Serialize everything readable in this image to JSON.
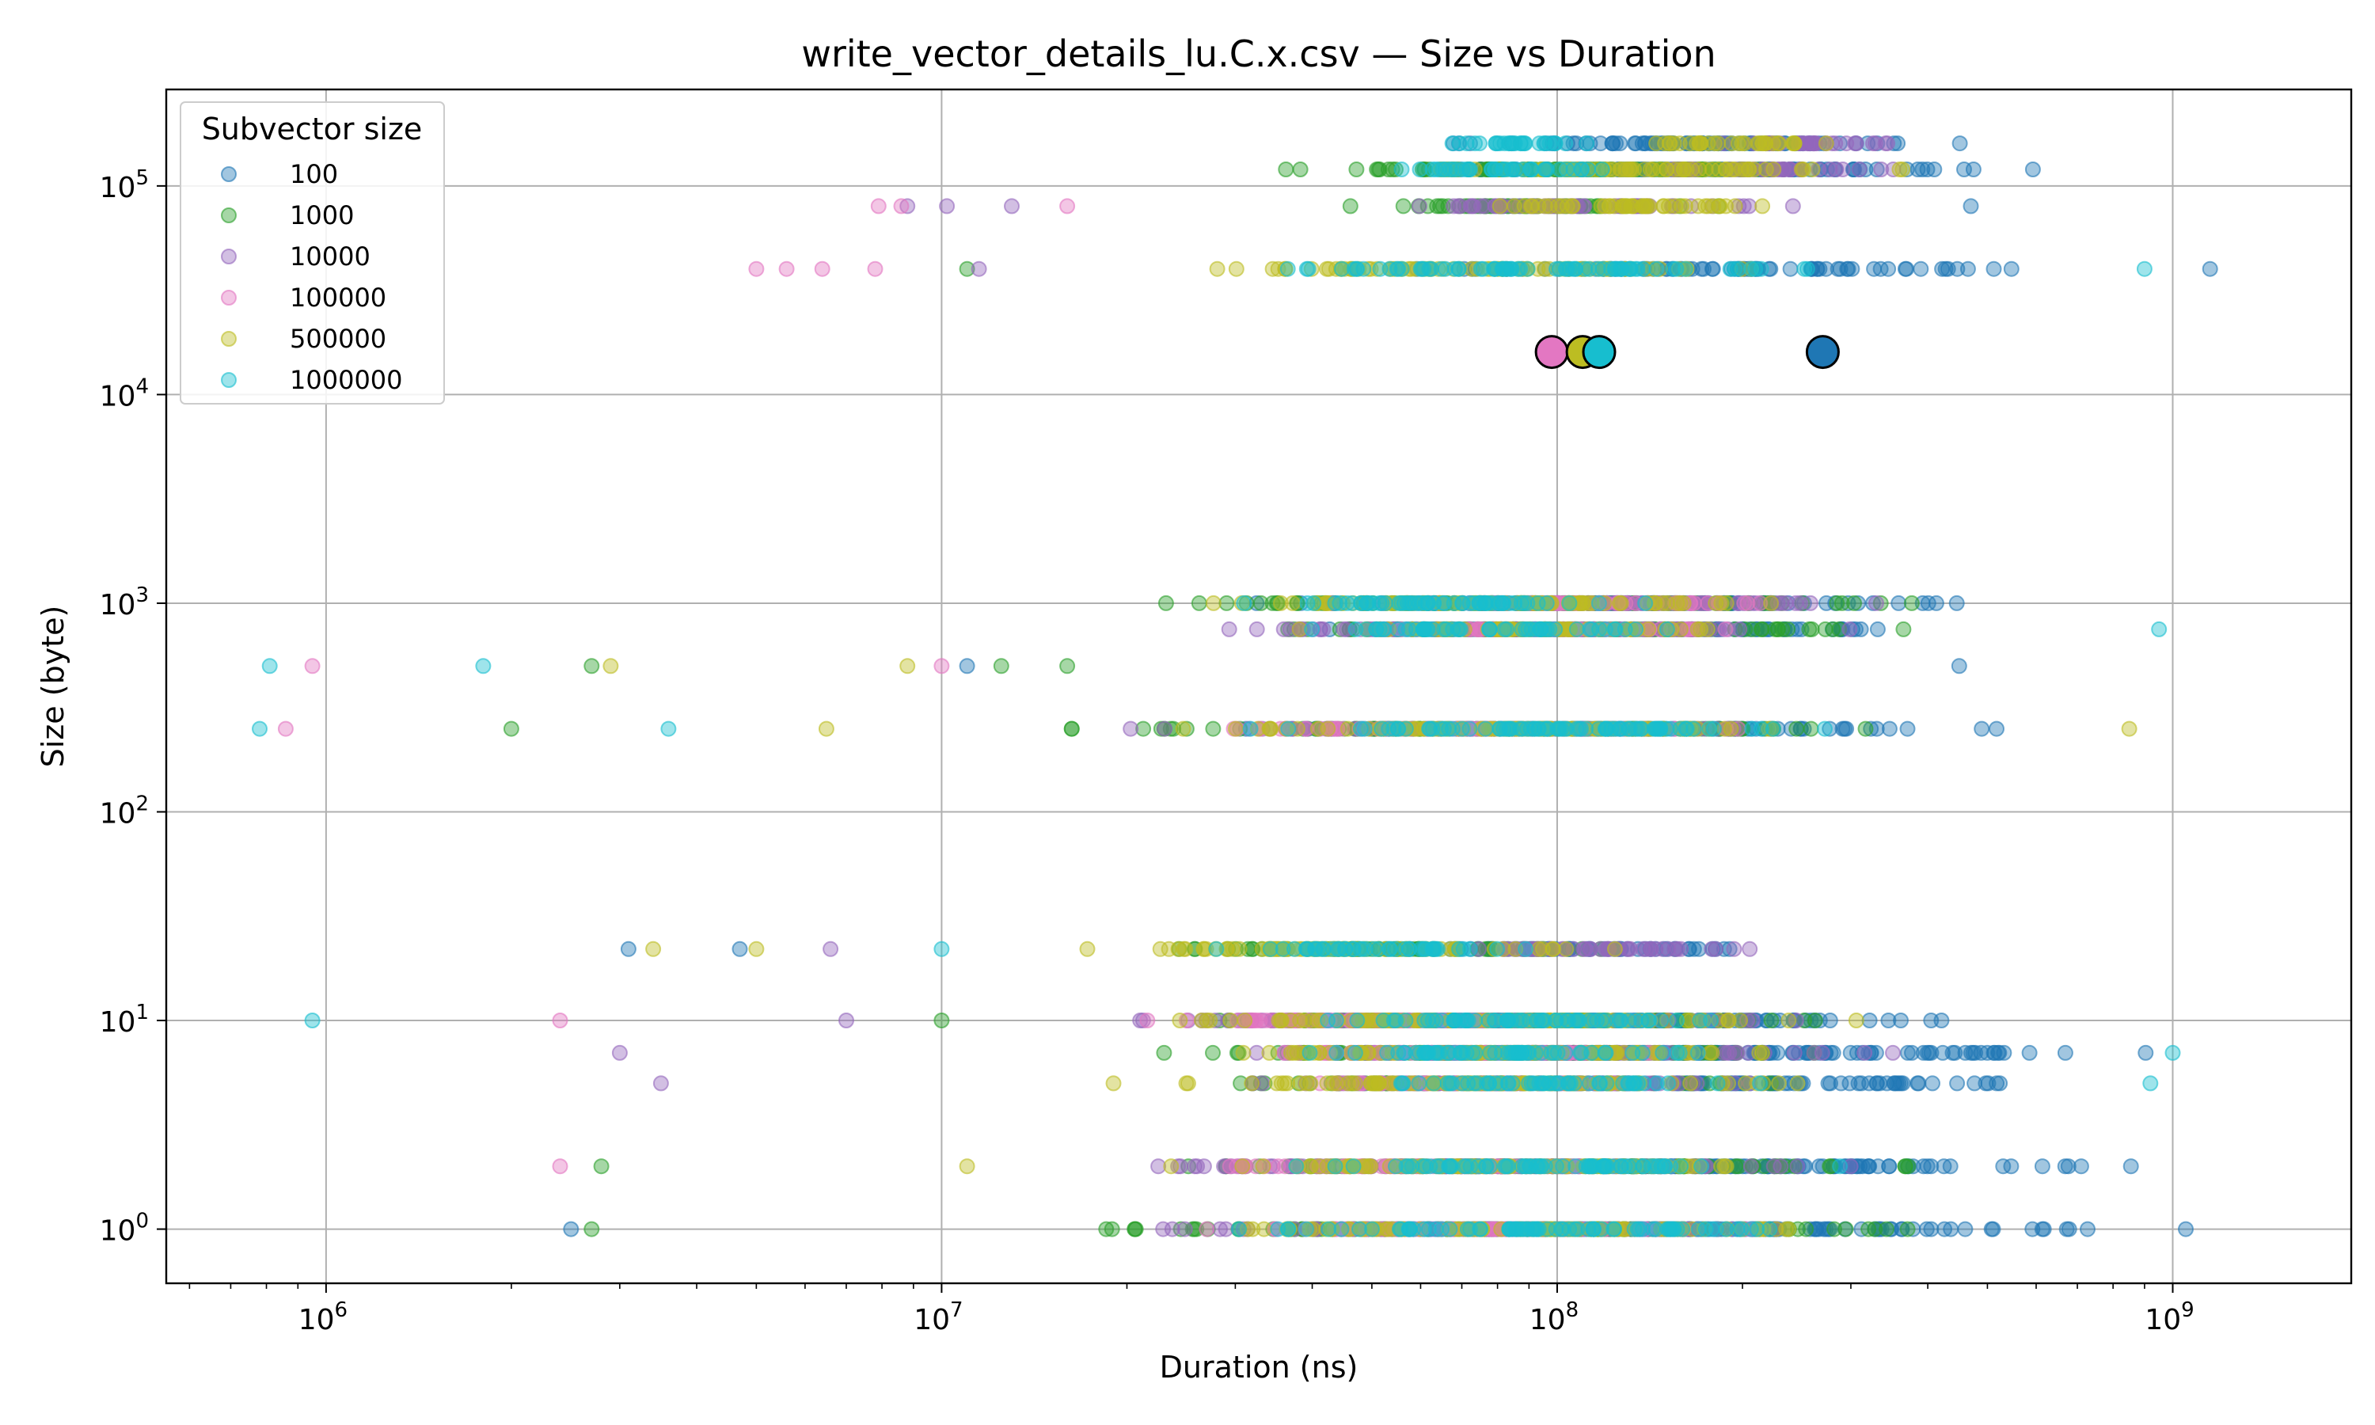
{
  "chart_data": {
    "type": "scatter",
    "title": "write_vector_details_lu.C.x.csv — Size vs Duration",
    "xlabel": "Duration (ns)",
    "ylabel": "Size (byte)",
    "xscale": "log",
    "yscale": "log",
    "xlim": [
      550000,
      1950000000
    ],
    "ylim": [
      0.55,
      290000
    ],
    "grid": true,
    "x_ticks": [
      {
        "base": "10",
        "exp": "6",
        "value": 1000000
      },
      {
        "base": "10",
        "exp": "7",
        "value": 10000000
      },
      {
        "base": "10",
        "exp": "8",
        "value": 100000000
      },
      {
        "base": "10",
        "exp": "9",
        "value": 1000000000
      }
    ],
    "y_ticks": [
      {
        "base": "10",
        "exp": "0",
        "value": 1
      },
      {
        "base": "10",
        "exp": "1",
        "value": 10
      },
      {
        "base": "10",
        "exp": "2",
        "value": 100
      },
      {
        "base": "10",
        "exp": "3",
        "value": 1000
      },
      {
        "base": "10",
        "exp": "4",
        "value": 10000
      },
      {
        "base": "10",
        "exp": "5",
        "value": 100000
      }
    ],
    "legend": {
      "title": "Subvector size",
      "position": "top-left"
    },
    "series": [
      {
        "name": "100",
        "color": "#1f77b4",
        "bands": [
          {
            "y": 160000,
            "x": [
              41000000,
              640000000
            ]
          },
          {
            "y": 120000,
            "x": [
              50000000,
              680000000
            ]
          },
          {
            "y": 40000,
            "x": [
              45000000,
              720000000
            ]
          },
          {
            "y": 1000,
            "x": [
              30000000,
              640000000
            ]
          },
          {
            "y": 750,
            "x": [
              35000000,
              600000000
            ]
          },
          {
            "y": 250,
            "x": [
              25000000,
              700000000
            ]
          },
          {
            "y": 22,
            "x": [
              40000000,
              280000000
            ]
          },
          {
            "y": 10,
            "x": [
              30000000,
              620000000
            ]
          },
          {
            "y": 7,
            "x": [
              35000000,
              1150000000
            ]
          },
          {
            "y": 5,
            "x": [
              40000000,
              760000000
            ]
          },
          {
            "y": 2,
            "x": [
              30000000,
              1150000000
            ]
          },
          {
            "y": 1,
            "x": [
              25000000,
              1280000000
            ]
          }
        ],
        "points": [
          {
            "x": 3100000,
            "y": 22
          },
          {
            "x": 4700000,
            "y": 22
          },
          {
            "x": 2500000,
            "y": 1
          },
          {
            "x": 11000000,
            "y": 500
          },
          {
            "x": 450000000,
            "y": 500
          },
          {
            "x": 470000000,
            "y": 80000
          },
          {
            "x": 1150000000,
            "y": 40000
          },
          {
            "x": 1050000000,
            "y": 1
          }
        ]
      },
      {
        "name": "1000",
        "color": "#2ca02c",
        "bands": [
          {
            "y": 120000,
            "x": [
              30000000,
              320000000
            ]
          },
          {
            "y": 80000,
            "x": [
              35000000,
              210000000
            ]
          },
          {
            "y": 1000,
            "x": [
              18000000,
              520000000
            ]
          },
          {
            "y": 750,
            "x": [
              25000000,
              470000000
            ]
          },
          {
            "y": 250,
            "x": [
              12000000,
              580000000
            ]
          },
          {
            "y": 22,
            "x": [
              18000000,
              140000000
            ]
          },
          {
            "y": 10,
            "x": [
              15000000,
              410000000
            ]
          },
          {
            "y": 7,
            "x": [
              18000000,
              380000000
            ]
          },
          {
            "y": 5,
            "x": [
              20000000,
              320000000
            ]
          },
          {
            "y": 2,
            "x": [
              16000000,
              520000000
            ]
          },
          {
            "y": 1,
            "x": [
              12000000,
              560000000
            ]
          }
        ],
        "points": [
          {
            "x": 2000000,
            "y": 250
          },
          {
            "x": 2700000,
            "y": 500
          },
          {
            "x": 2800000,
            "y": 2
          },
          {
            "x": 2700000,
            "y": 1
          },
          {
            "x": 10000000,
            "y": 10
          },
          {
            "x": 11000000,
            "y": 40000
          },
          {
            "x": 12500000,
            "y": 500
          },
          {
            "x": 16000000,
            "y": 500
          }
        ]
      },
      {
        "name": "10000",
        "color": "#9467bd",
        "bands": [
          {
            "y": 160000,
            "x": [
              150000000,
              420000000
            ]
          },
          {
            "y": 120000,
            "x": [
              120000000,
              400000000
            ]
          },
          {
            "y": 80000,
            "x": [
              50000000,
              300000000
            ]
          },
          {
            "y": 1000,
            "x": [
              60000000,
              380000000
            ]
          },
          {
            "y": 750,
            "x": [
              18000000,
              380000000
            ]
          },
          {
            "y": 250,
            "x": [
              15000000,
              420000000
            ]
          },
          {
            "y": 22,
            "x": [
              50000000,
              240000000
            ]
          },
          {
            "y": 10,
            "x": [
              14000000,
              300000000
            ]
          },
          {
            "y": 7,
            "x": [
              20000000,
              460000000
            ]
          },
          {
            "y": 5,
            "x": [
              25000000,
              280000000
            ]
          },
          {
            "y": 2,
            "x": [
              15000000,
              400000000
            ]
          },
          {
            "y": 1,
            "x": [
              15000000,
              460000000
            ]
          }
        ],
        "points": [
          {
            "x": 8800000,
            "y": 80000
          },
          {
            "x": 10200000,
            "y": 80000
          },
          {
            "x": 11500000,
            "y": 40000
          },
          {
            "x": 13000000,
            "y": 80000
          },
          {
            "x": 3000000,
            "y": 7
          },
          {
            "x": 3500000,
            "y": 5
          },
          {
            "x": 6600000,
            "y": 22
          },
          {
            "x": 7000000,
            "y": 10
          }
        ]
      },
      {
        "name": "100000",
        "color": "#e377c2",
        "bands": [
          {
            "y": 1000,
            "x": [
              35000000,
              300000000
            ]
          },
          {
            "y": 750,
            "x": [
              40000000,
              250000000
            ]
          },
          {
            "y": 250,
            "x": [
              20000000,
              250000000
            ]
          },
          {
            "y": 10,
            "x": [
              16000000,
              160000000
            ]
          },
          {
            "y": 7,
            "x": [
              22000000,
              250000000
            ]
          },
          {
            "y": 5,
            "x": [
              30000000,
              200000000
            ]
          },
          {
            "y": 2,
            "x": [
              20000000,
              200000000
            ]
          },
          {
            "y": 1,
            "x": [
              20000000,
              250000000
            ]
          }
        ],
        "points": [
          {
            "x": 5000000,
            "y": 40000
          },
          {
            "x": 5600000,
            "y": 40000
          },
          {
            "x": 6400000,
            "y": 40000
          },
          {
            "x": 7800000,
            "y": 40000
          },
          {
            "x": 7900000,
            "y": 80000
          },
          {
            "x": 8600000,
            "y": 80000
          },
          {
            "x": 16000000,
            "y": 80000
          },
          {
            "x": 950000,
            "y": 500
          },
          {
            "x": 860000,
            "y": 250
          },
          {
            "x": 2400000,
            "y": 10
          },
          {
            "x": 2400000,
            "y": 2
          },
          {
            "x": 10000000,
            "y": 500
          }
        ]
      },
      {
        "name": "500000",
        "color": "#bcbd22",
        "bands": [
          {
            "y": 160000,
            "x": [
              120000000,
              360000000
            ]
          },
          {
            "y": 120000,
            "x": [
              40000000,
              420000000
            ]
          },
          {
            "y": 80000,
            "x": [
              60000000,
              280000000
            ]
          },
          {
            "y": 40000,
            "x": [
              20000000,
              300000000
            ]
          },
          {
            "y": 1000,
            "x": [
              19000000,
              360000000
            ]
          },
          {
            "y": 750,
            "x": [
              30000000,
              260000000
            ]
          },
          {
            "y": 250,
            "x": [
              17000000,
              420000000
            ]
          },
          {
            "y": 22,
            "x": [
              15000000,
              140000000
            ]
          },
          {
            "y": 10,
            "x": [
              16000000,
              360000000
            ]
          },
          {
            "y": 7,
            "x": [
              20000000,
              300000000
            ]
          },
          {
            "y": 5,
            "x": [
              17000000,
              330000000
            ]
          },
          {
            "y": 2,
            "x": [
              18000000,
              360000000
            ]
          },
          {
            "y": 1,
            "x": [
              20000000,
              370000000
            ]
          }
        ],
        "points": [
          {
            "x": 2900000,
            "y": 500
          },
          {
            "x": 3400000,
            "y": 22
          },
          {
            "x": 5000000,
            "y": 22
          },
          {
            "x": 6500000,
            "y": 250
          },
          {
            "x": 8800000,
            "y": 500
          },
          {
            "x": 11000000,
            "y": 2
          },
          {
            "x": 850000000,
            "y": 250
          }
        ]
      },
      {
        "name": "1000000",
        "color": "#17becf",
        "bands": [
          {
            "y": 160000,
            "x": [
              55000000,
              140000000
            ]
          },
          {
            "y": 120000,
            "x": [
              45000000,
              160000000
            ]
          },
          {
            "y": 40000,
            "x": [
              25000000,
              300000000
            ]
          },
          {
            "y": 1000,
            "x": [
              25000000,
              180000000
            ]
          },
          {
            "y": 750,
            "x": [
              35000000,
              200000000
            ]
          },
          {
            "y": 250,
            "x": [
              25000000,
              400000000
            ]
          },
          {
            "y": 22,
            "x": [
              25000000,
              110000000
            ]
          },
          {
            "y": 10,
            "x": [
              28000000,
              260000000
            ]
          },
          {
            "y": 7,
            "x": [
              30000000,
              240000000
            ]
          },
          {
            "y": 5,
            "x": [
              40000000,
              220000000
            ]
          },
          {
            "y": 2,
            "x": [
              30000000,
              300000000
            ]
          },
          {
            "y": 1,
            "x": [
              25000000,
              380000000
            ]
          }
        ],
        "points": [
          {
            "x": 780000,
            "y": 250
          },
          {
            "x": 810000,
            "y": 500
          },
          {
            "x": 950000,
            "y": 10
          },
          {
            "x": 1800000,
            "y": 500
          },
          {
            "x": 3600000,
            "y": 250
          },
          {
            "x": 10000000,
            "y": 22
          },
          {
            "x": 900000000,
            "y": 40000
          },
          {
            "x": 950000000,
            "y": 750
          },
          {
            "x": 1000000000,
            "y": 7
          },
          {
            "x": 920000000,
            "y": 5
          }
        ]
      }
    ],
    "highlighted_points": [
      {
        "x": 98000000,
        "y": 16000,
        "color": "#e377c2"
      },
      {
        "x": 110000000,
        "y": 16000,
        "color": "#bcbd22"
      },
      {
        "x": 117000000,
        "y": 16000,
        "color": "#17becf"
      },
      {
        "x": 270000000,
        "y": 16000,
        "color": "#1f77b4"
      }
    ]
  }
}
